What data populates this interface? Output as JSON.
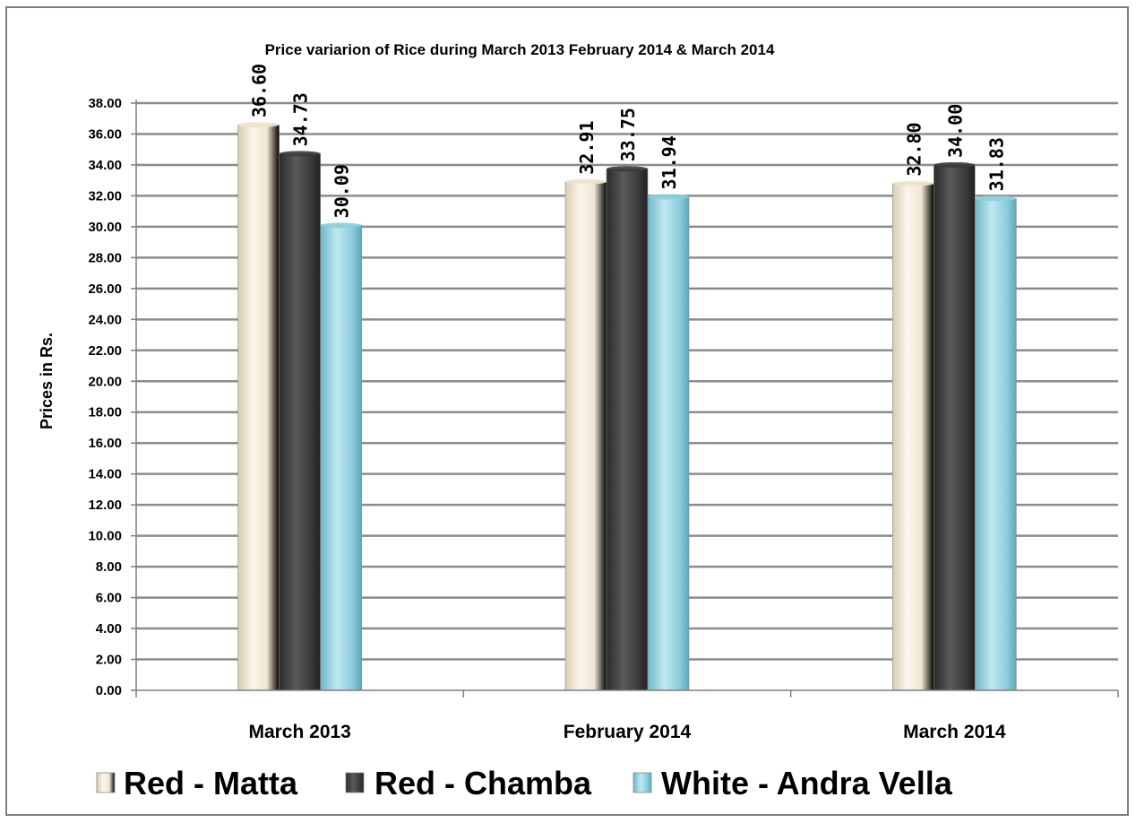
{
  "chart_data": {
    "type": "bar",
    "title": "Price variarion of Rice during March 2013 February 2014 & March  2014",
    "ylabel": "Prices in Rs.",
    "xlabel": "",
    "ylim": [
      0,
      38
    ],
    "y_ticks": [
      "0.00",
      "2.00",
      "4.00",
      "6.00",
      "8.00",
      "10.00",
      "12.00",
      "14.00",
      "16.00",
      "18.00",
      "20.00",
      "22.00",
      "24.00",
      "26.00",
      "28.00",
      "30.00",
      "32.00",
      "34.00",
      "36.00",
      "38.00"
    ],
    "categories": [
      "March 2013",
      "February 2014",
      "March 2014"
    ],
    "series": [
      {
        "name": "Red - Matta",
        "values": [
          36.6,
          32.91,
          32.8
        ],
        "labels": [
          "36.60",
          "32.91",
          "32.80"
        ],
        "color": "#ede3cf"
      },
      {
        "name": "Red - Chamba",
        "values": [
          34.73,
          33.75,
          34.0
        ],
        "labels": [
          "34.73",
          "33.75",
          "34.00"
        ],
        "color": "#3b3b3b"
      },
      {
        "name": "White - Andra Vella",
        "values": [
          30.09,
          31.94,
          31.83
        ],
        "labels": [
          "30.09",
          "31.94",
          "31.83"
        ],
        "color": "#8ecfdc"
      }
    ],
    "grid": true,
    "legend_position": "bottom"
  }
}
